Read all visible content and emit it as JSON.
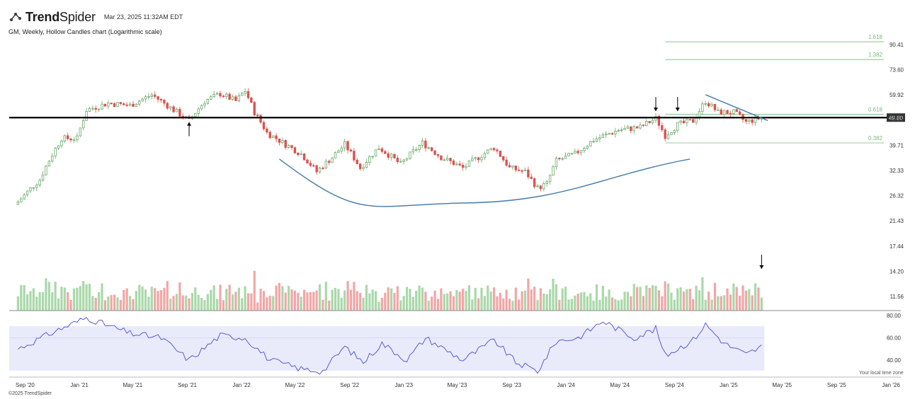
{
  "header": {
    "brand_bold": "Trend",
    "brand_light": "Spider",
    "timestamp": "Mar 23, 2025 11:32AM EDT",
    "subtitle": "GM, Weekly, Hollow Candles chart (Logarithmic scale)",
    "footer": "©2025 TrendSpider",
    "timezone_note": "Your local time zone"
  },
  "colors": {
    "up": "#6aa96a",
    "down": "#d9534f",
    "vol_up": "#a9d8a9",
    "vol_down": "#f2a6a6",
    "fib": "#7cb87c",
    "trend": "#4a7fb0",
    "rsi_line": "#5b5bd6",
    "rsi_band": "#e9ebfb",
    "support": "#000000",
    "price_tag": "#333333"
  },
  "chart_data": {
    "type": "candlestick",
    "ticker": "GM",
    "interval": "Weekly",
    "scale": "log",
    "price_axis_ticks": [
      "90.41",
      "73.60",
      "59.92",
      "49.80",
      "39.71",
      "32.33",
      "26.32",
      "21.43",
      "17.44",
      "14.20",
      "11.56"
    ],
    "price_axis_values": [
      90.41,
      73.6,
      59.92,
      49.8,
      39.71,
      32.33,
      26.32,
      21.43,
      17.44,
      14.2,
      11.56
    ],
    "rsi_axis_ticks": [
      "80.00",
      "60.00",
      "40.00"
    ],
    "x_ticks": [
      "Sep '20",
      "Jan '21",
      "May '21",
      "Sep '21",
      "Jan '22",
      "May '22",
      "Sep '22",
      "Jan '23",
      "May '23",
      "Sep '23",
      "Jan '24",
      "May '24",
      "Sep '24",
      "Jan '25",
      "May '25",
      "Sep '25",
      "Jan '26"
    ],
    "last_price": "49.80",
    "support_level": 49.8,
    "fib_levels": [
      {
        "label": "1.618",
        "value": 92.5
      },
      {
        "label": "1.382",
        "value": 80.0
      },
      {
        "label": "0.618",
        "value": 51.2
      },
      {
        "label": "0.382",
        "value": 40.5
      }
    ],
    "price_anchors": [
      {
        "date": "2020-08-16",
        "close": 25.0
      },
      {
        "date": "2020-10-04",
        "close": 30.0
      },
      {
        "date": "2020-11-22",
        "close": 42.0
      },
      {
        "date": "2020-12-27",
        "close": 42.0
      },
      {
        "date": "2021-01-17",
        "close": 53.0
      },
      {
        "date": "2021-03-07",
        "close": 56.0
      },
      {
        "date": "2021-04-25",
        "close": 55.0
      },
      {
        "date": "2021-06-13",
        "close": 60.0
      },
      {
        "date": "2021-08-01",
        "close": 53.0
      },
      {
        "date": "2021-09-05",
        "close": 48.5
      },
      {
        "date": "2021-10-10",
        "close": 57.0
      },
      {
        "date": "2021-11-14",
        "close": 60.5
      },
      {
        "date": "2021-12-19",
        "close": 57.0
      },
      {
        "date": "2022-01-09",
        "close": 62.0
      },
      {
        "date": "2022-01-30",
        "close": 52.0
      },
      {
        "date": "2022-02-27",
        "close": 44.0
      },
      {
        "date": "2022-04-10",
        "close": 40.0
      },
      {
        "date": "2022-05-15",
        "close": 37.0
      },
      {
        "date": "2022-06-19",
        "close": 32.0
      },
      {
        "date": "2022-07-24",
        "close": 36.0
      },
      {
        "date": "2022-08-21",
        "close": 40.0
      },
      {
        "date": "2022-09-25",
        "close": 33.0
      },
      {
        "date": "2022-11-06",
        "close": 39.0
      },
      {
        "date": "2022-12-25",
        "close": 34.0
      },
      {
        "date": "2023-02-12",
        "close": 40.5
      },
      {
        "date": "2023-03-26",
        "close": 36.0
      },
      {
        "date": "2023-05-14",
        "close": 33.0
      },
      {
        "date": "2023-06-18",
        "close": 36.0
      },
      {
        "date": "2023-07-23",
        "close": 39.0
      },
      {
        "date": "2023-08-27",
        "close": 33.0
      },
      {
        "date": "2023-10-01",
        "close": 32.0
      },
      {
        "date": "2023-10-29",
        "close": 28.0
      },
      {
        "date": "2023-11-19",
        "close": 29.0
      },
      {
        "date": "2023-12-10",
        "close": 35.0
      },
      {
        "date": "2024-01-21",
        "close": 37.0
      },
      {
        "date": "2024-03-03",
        "close": 41.5
      },
      {
        "date": "2024-04-28",
        "close": 45.0
      },
      {
        "date": "2024-06-16",
        "close": 46.0
      },
      {
        "date": "2024-07-21",
        "close": 49.5
      },
      {
        "date": "2024-08-11",
        "close": 43.0
      },
      {
        "date": "2024-09-08",
        "close": 47.0
      },
      {
        "date": "2024-10-13",
        "close": 48.5
      },
      {
        "date": "2024-11-10",
        "close": 57.0
      },
      {
        "date": "2024-12-08",
        "close": 52.0
      },
      {
        "date": "2025-01-12",
        "close": 52.0
      },
      {
        "date": "2025-02-09",
        "close": 48.0
      },
      {
        "date": "2025-03-16",
        "close": 49.8
      }
    ],
    "rsi_anchors": [
      {
        "date": "2020-08-16",
        "value": 50
      },
      {
        "date": "2020-11-08",
        "value": 66
      },
      {
        "date": "2021-01-17",
        "value": 78
      },
      {
        "date": "2021-04-25",
        "value": 64
      },
      {
        "date": "2021-07-04",
        "value": 60
      },
      {
        "date": "2021-09-05",
        "value": 40
      },
      {
        "date": "2021-11-14",
        "value": 62
      },
      {
        "date": "2022-01-09",
        "value": 60
      },
      {
        "date": "2022-03-06",
        "value": 40
      },
      {
        "date": "2022-05-15",
        "value": 32
      },
      {
        "date": "2022-07-03",
        "value": 30
      },
      {
        "date": "2022-08-21",
        "value": 52
      },
      {
        "date": "2022-10-02",
        "value": 38
      },
      {
        "date": "2022-11-13",
        "value": 55
      },
      {
        "date": "2023-01-08",
        "value": 40
      },
      {
        "date": "2023-02-19",
        "value": 60
      },
      {
        "date": "2023-05-14",
        "value": 40
      },
      {
        "date": "2023-07-23",
        "value": 58
      },
      {
        "date": "2023-09-10",
        "value": 38
      },
      {
        "date": "2023-10-29",
        "value": 30
      },
      {
        "date": "2023-12-10",
        "value": 57
      },
      {
        "date": "2024-01-28",
        "value": 60
      },
      {
        "date": "2024-03-24",
        "value": 75
      },
      {
        "date": "2024-06-02",
        "value": 60
      },
      {
        "date": "2024-07-21",
        "value": 68
      },
      {
        "date": "2024-08-11",
        "value": 44
      },
      {
        "date": "2024-10-13",
        "value": 58
      },
      {
        "date": "2024-11-10",
        "value": 72
      },
      {
        "date": "2024-12-22",
        "value": 55
      },
      {
        "date": "2025-02-09",
        "value": 45
      },
      {
        "date": "2025-03-16",
        "value": 52
      }
    ]
  }
}
